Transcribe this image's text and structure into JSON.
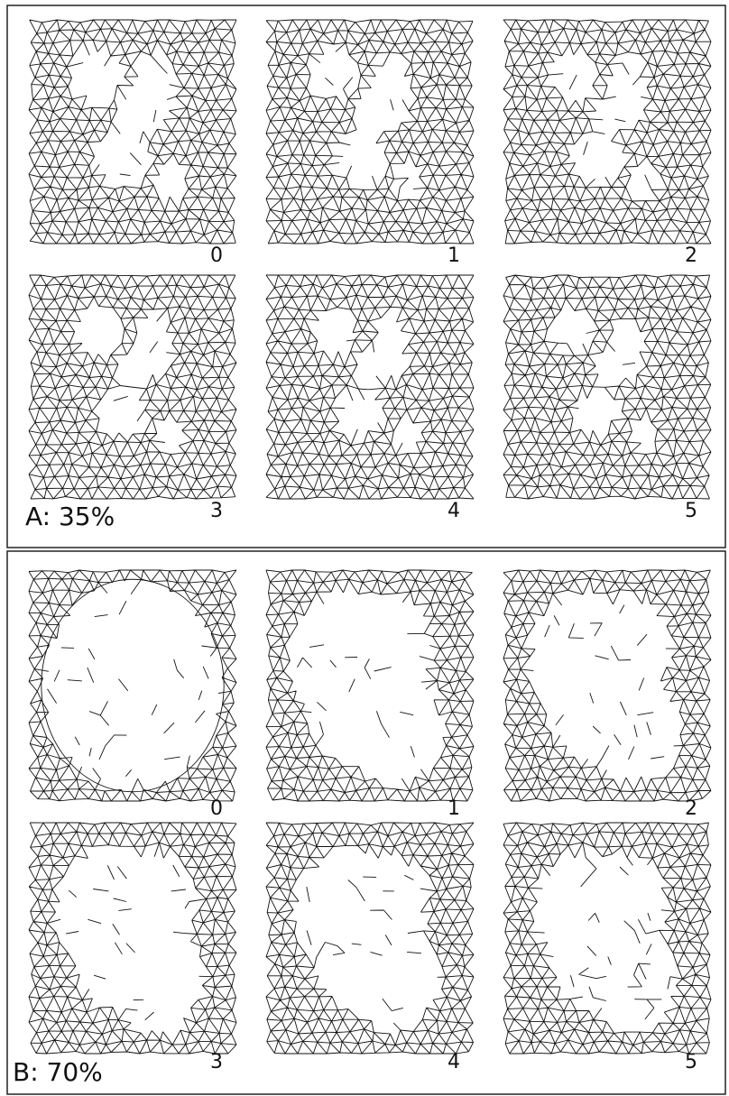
{
  "panels": [
    {
      "label": "A: 35%",
      "frames": [
        {
          "label": "0"
        },
        {
          "label": "1"
        },
        {
          "label": "2"
        },
        {
          "label": "3"
        },
        {
          "label": "4"
        },
        {
          "label": "5"
        }
      ]
    },
    {
      "label": "B: 70%",
      "frames": [
        {
          "label": "0"
        },
        {
          "label": "1"
        },
        {
          "label": "2"
        },
        {
          "label": "3"
        },
        {
          "label": "4"
        },
        {
          "label": "5"
        }
      ]
    }
  ]
}
